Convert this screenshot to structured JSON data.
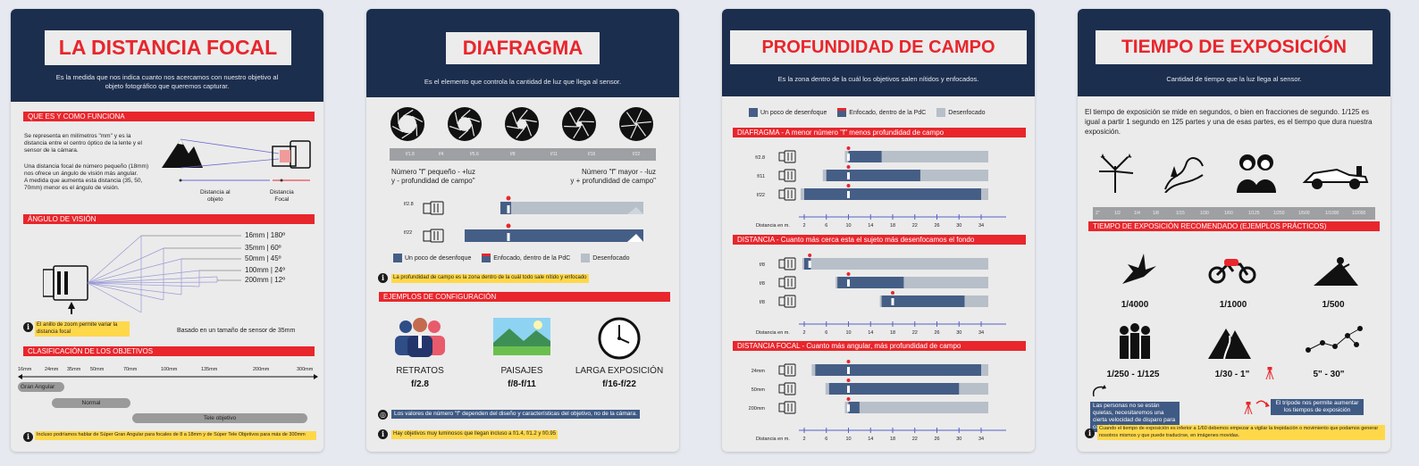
{
  "colors": {
    "navy": "#1c2e4d",
    "red": "#e8262c",
    "card": "#ebebeb",
    "dof_dark": "#455e86",
    "dof_light": "#b7bfc9",
    "highlight": "#ffd84a"
  },
  "focal": {
    "title": "LA DISTANCIA FOCAL",
    "subtitle": "Es la medida que nos indica cuanto nos acercamos con nuestro objetivo al objeto fotográfico que queremos capturar.",
    "s1_title": "QUE ES Y COMO FUNCIONA",
    "s1_p1": "Se representa en milímetros \"mm\" y es la distancia entre el centro óptico de la lente y el sensor de la cámara.",
    "s1_p2": "Una distancia focal de número pequeño (18mm) nos ofrece un ángulo de visión más angular.\nA medida que aumenta esta distancia (35, 50, 70mm) menor es el ángulo de visión.",
    "label_object": "Distancia al\nobjeto",
    "label_focal": "Distancia\nFocal",
    "s2_title": "ÁNGULO DE VISIÓN",
    "angles": [
      "16mm | 180º",
      "35mm | 60º",
      "50mm | 45º",
      "100mm | 24º",
      "200mm | 12º"
    ],
    "zoom_note": "El anillo de zoom permite variar la distancia focal",
    "sensor_note": "Basado en un tamaño de sensor de 35mm",
    "s3_title": "CLASIFICACIÓN DE LOS OBJETIVOS",
    "scale": [
      "16mm",
      "24mm",
      "35mm",
      "50mm",
      "70mm",
      "100mm",
      "135mm",
      "200mm",
      "300mm"
    ],
    "classes": [
      "Gran Angular",
      "Normal",
      "Tele objetivo"
    ],
    "footer": "Incluso podríamos hablar de Súper Gran Angular para focales de 8 a 18mm y de Súper Tele Objetivos para más de 300mm"
  },
  "aperture": {
    "title": "DIAFRAGMA",
    "subtitle": "Es el elemento que controla la cantidad de luz que llega al sensor.",
    "fstops": [
      "f/1.8",
      "f/4",
      "f/5.6",
      "f/8",
      "f/11",
      "f/16",
      "f/22"
    ],
    "left_note": "Número \"f\" pequeño - +luz\ny - profundidad de campo\"",
    "right_note": "Número \"f\" mayor - -luz\ny + profundidad de campo\"",
    "rows": [
      "f/2.8",
      "f/22"
    ],
    "legend": [
      "Un poco de desenfoque",
      "Enfocado, dentro de la PdC",
      "Desenfocado"
    ],
    "dof_note": "La profundidad de campo es la zona dentro de la cuál todo sale nítido y enfocado",
    "examples_title": "EJEMPLOS DE CONFIGURACIÓN",
    "examples": [
      {
        "name": "RETRATOS",
        "value": "f/2.8"
      },
      {
        "name": "PAISAJES",
        "value": "f/8-f/11"
      },
      {
        "name": "LARGA EXPOSICIÓN",
        "value": "f/16-f/22"
      }
    ],
    "lens_note": "Los valores de número \"f\" dependen del diseño y características del objetivo, no de la cámara.",
    "bright_note": "Hay objetivos muy luminosos que llegan incluso a f/1.4, f/1.2 y f/0.95"
  },
  "dof": {
    "title": "PROFUNDIDAD DE CAMPO",
    "subtitle": "Es la zona dentro de la cuál los objetivos salen nítidos y enfocados.",
    "legend": [
      "Un poco de desenfoque",
      "Enfocado, dentro de la PdC",
      "Desenfocado"
    ],
    "sections": [
      {
        "title": "DIAFRAGMA - A menor número \"f\" menos profundidad de campo",
        "rows": [
          {
            "label": "f/2.8",
            "lo": 10,
            "hi": 16
          },
          {
            "label": "f/11",
            "lo": 6,
            "hi": 23
          },
          {
            "label": "f/22",
            "lo": 2,
            "hi": 34
          }
        ]
      },
      {
        "title": "DISTANCIA - Cuanto más cerca esta el sujeto más desenfocamos el fondo",
        "rows": [
          {
            "label": "f/8",
            "lo": 2,
            "hi": 3.2
          },
          {
            "label": "f/8",
            "lo": 8,
            "hi": 20
          },
          {
            "label": "f/8",
            "lo": 16,
            "hi": 31
          }
        ]
      },
      {
        "title": "DISTANCIA FOCAL - Cuanto más angular, más profundidad de campo",
        "rows": [
          {
            "label": "24mm",
            "lo": 4,
            "hi": 34
          },
          {
            "label": "50mm",
            "lo": 6.5,
            "hi": 30
          },
          {
            "label": "200mm",
            "lo": 10,
            "hi": 12
          }
        ]
      }
    ],
    "axis_label": "Distancia en m.",
    "ticks": [
      "2",
      "6",
      "10",
      "14",
      "18",
      "22",
      "26",
      "30",
      "34"
    ]
  },
  "exposure": {
    "title": "TIEMPO DE EXPOSICIÓN",
    "subtitle": "Cantidad de tiempo que la luz llega al sensor.",
    "intro": "El tiempo de exposición se mide en segundos, o bien en fracciones de segundo. 1/125 es igual a partir 1 segundo en 125 partes y una de esas partes, es el tiempo que dura nuestra exposición.",
    "scale": [
      "2\"",
      "1/2",
      "1/4",
      "1/8",
      "1/15",
      "1/30",
      "1/60",
      "1/125",
      "1/250",
      "1/500",
      "1/1000",
      "1/2000"
    ],
    "rec_title": "TIEMPO DE EXPOSICIÓN RECOMENDADO (EJEMPLOS PRÁCTICOS)",
    "examples": [
      "1/4000",
      "1/1000",
      "1/500",
      "1/250 - 1/125",
      "1/30 - 1\"",
      "5\" - 30\""
    ],
    "people_note": "Las personas no se están quietas, necesitaremos una cierta velocidad de disparo para congelarlas",
    "tripod_note": "El trípode nos permite aumentar los tiempos de exposición",
    "footer": "Cuando el tiempo de exposición es inferior a 1/60 debemos empezar a vigilar la trepidación o movimiento que podamos generar nosotros mismos y que puede traducirse, en imágenes movidas."
  }
}
